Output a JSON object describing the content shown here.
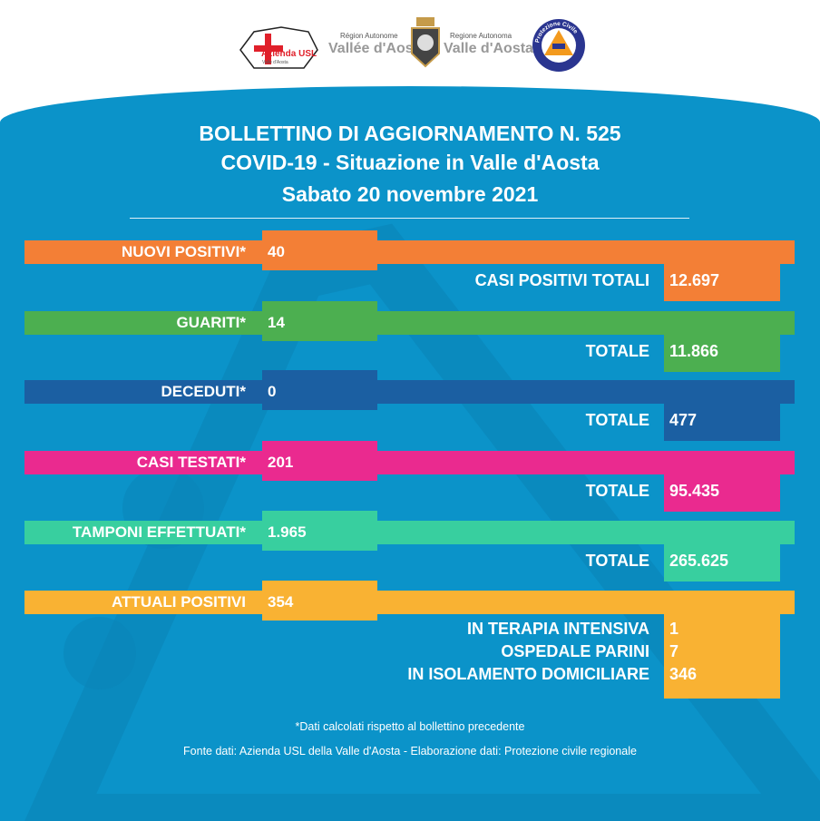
{
  "logos": {
    "usl": "Azienda USL",
    "usl_sub": "Valle d'Aosta",
    "region_fr_top": "Région Autonome",
    "region_fr": "Vallée d'Aoste",
    "region_it_top": "Regione Autonoma",
    "region_it": "Valle d'Aosta",
    "civil": "Protezione Civile"
  },
  "header": {
    "line1": "BOLLETTINO DI AGGIORNAMENTO N. 525",
    "line2": "COVID-19 - Situazione in Valle d'Aosta",
    "line3": "Sabato 20 novembre 2021"
  },
  "rows": [
    {
      "label": "NUOVI POSITIVI*",
      "value": "40",
      "total_label": "CASI POSITIVI TOTALI",
      "total": "12.697",
      "color": "#f37f36"
    },
    {
      "label": "GUARITI*",
      "value": "14",
      "total_label": "TOTALE",
      "total": "11.866",
      "color": "#4caf50"
    },
    {
      "label": "DECEDUTI*",
      "value": "0",
      "total_label": "TOTALE",
      "total": "477",
      "color": "#1b5fa2"
    },
    {
      "label": "CASI TESTATI*",
      "value": "201",
      "total_label": "TOTALE",
      "total": "95.435",
      "color": "#ea2a8f"
    },
    {
      "label": "TAMPONI EFFETTUATI*",
      "value": "1.965",
      "total_label": "TOTALE",
      "total": "265.625",
      "color": "#38cf9f"
    },
    {
      "label": "ATTUALI POSITIVI",
      "value": "354",
      "color": "#f9b233",
      "breakdown": [
        {
          "label": "IN TERAPIA INTENSIVA",
          "value": "1"
        },
        {
          "label": "OSPEDALE PARINI",
          "value": "7"
        },
        {
          "label": "IN ISOLAMENTO DOMICILIARE",
          "value": "346"
        }
      ]
    }
  ],
  "footer": {
    "note": "*Dati calcolati rispetto al bollettino precedente",
    "source": "Fonte dati: Azienda USL della Valle d'Aosta - Elaborazione dati: Protezione civile regionale"
  }
}
